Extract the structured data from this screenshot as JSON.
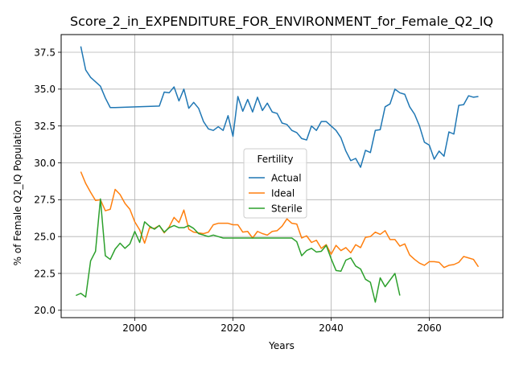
{
  "chart_data": {
    "type": "line",
    "title": "Score_2_in_EXPENDITURE_FOR_ENVIRONMENT_for_Female_Q2_IQ",
    "xlabel": "Years",
    "ylabel": "% of Female Q2_IQ Population",
    "xlim": [
      1985,
      2075
    ],
    "ylim": [
      19.5,
      38.7
    ],
    "xticks": [
      2000,
      2020,
      2040,
      2060
    ],
    "yticks": [
      20.0,
      22.5,
      25.0,
      27.5,
      30.0,
      32.5,
      35.0,
      37.5
    ],
    "xtick_labels": [
      "2000",
      "2020",
      "2040",
      "2060"
    ],
    "ytick_labels": [
      "20.0",
      "22.5",
      "25.0",
      "27.5",
      "30.0",
      "32.5",
      "35.0",
      "37.5"
    ],
    "grid": true,
    "legend": {
      "title": "Fertility",
      "position": "center-right"
    },
    "series": [
      {
        "name": "Actual",
        "color": "#1f77b4",
        "points": [
          [
            1989,
            37.9
          ],
          [
            1990,
            36.3
          ],
          [
            1991,
            35.8
          ],
          [
            1992,
            35.5
          ],
          [
            1993,
            35.2
          ],
          [
            1994,
            34.4
          ],
          [
            1995,
            33.75
          ],
          [
            1996,
            33.75
          ],
          [
            2005,
            33.85
          ],
          [
            2006,
            34.8
          ],
          [
            2007,
            34.75
          ],
          [
            2008,
            35.15
          ],
          [
            2009,
            34.2
          ],
          [
            2010,
            35.0
          ],
          [
            2011,
            33.7
          ],
          [
            2012,
            34.1
          ],
          [
            2013,
            33.7
          ],
          [
            2014,
            32.8
          ],
          [
            2015,
            32.3
          ],
          [
            2016,
            32.2
          ],
          [
            2017,
            32.45
          ],
          [
            2018,
            32.2
          ],
          [
            2019,
            33.2
          ],
          [
            2020,
            31.8
          ],
          [
            2021,
            34.5
          ],
          [
            2022,
            33.5
          ],
          [
            2023,
            34.3
          ],
          [
            2024,
            33.45
          ],
          [
            2025,
            34.45
          ],
          [
            2026,
            33.55
          ],
          [
            2027,
            34.05
          ],
          [
            2028,
            33.45
          ],
          [
            2029,
            33.35
          ],
          [
            2030,
            32.7
          ],
          [
            2031,
            32.6
          ],
          [
            2032,
            32.2
          ],
          [
            2033,
            32.05
          ],
          [
            2034,
            31.65
          ],
          [
            2035,
            31.55
          ],
          [
            2036,
            32.5
          ],
          [
            2037,
            32.2
          ],
          [
            2038,
            32.8
          ],
          [
            2039,
            32.8
          ],
          [
            2040,
            32.5
          ],
          [
            2041,
            32.2
          ],
          [
            2042,
            31.7
          ],
          [
            2043,
            30.8
          ],
          [
            2044,
            30.15
          ],
          [
            2045,
            30.3
          ],
          [
            2046,
            29.7
          ],
          [
            2047,
            30.85
          ],
          [
            2048,
            30.7
          ],
          [
            2049,
            32.2
          ],
          [
            2050,
            32.25
          ],
          [
            2051,
            33.8
          ],
          [
            2052,
            34.0
          ],
          [
            2053,
            35.0
          ],
          [
            2054,
            34.75
          ],
          [
            2055,
            34.65
          ],
          [
            2056,
            33.8
          ],
          [
            2057,
            33.3
          ],
          [
            2058,
            32.5
          ],
          [
            2059,
            31.4
          ],
          [
            2060,
            31.2
          ],
          [
            2061,
            30.25
          ],
          [
            2062,
            30.8
          ],
          [
            2063,
            30.45
          ],
          [
            2064,
            32.1
          ],
          [
            2065,
            31.95
          ],
          [
            2066,
            33.9
          ],
          [
            2067,
            33.95
          ],
          [
            2068,
            34.55
          ],
          [
            2069,
            34.45
          ],
          [
            2070,
            34.5
          ]
        ]
      },
      {
        "name": "Ideal",
        "color": "#ff7f0e",
        "points": [
          [
            1989,
            29.4
          ],
          [
            1990,
            28.6
          ],
          [
            1991,
            28.0
          ],
          [
            1992,
            27.45
          ],
          [
            1993,
            27.5
          ],
          [
            1994,
            26.75
          ],
          [
            1995,
            26.85
          ],
          [
            1996,
            28.2
          ],
          [
            1997,
            27.85
          ],
          [
            1998,
            27.25
          ],
          [
            1999,
            26.85
          ],
          [
            2000,
            26.0
          ],
          [
            2001,
            25.45
          ],
          [
            2002,
            24.55
          ],
          [
            2003,
            25.6
          ],
          [
            2004,
            25.55
          ],
          [
            2005,
            25.75
          ],
          [
            2006,
            25.25
          ],
          [
            2007,
            25.65
          ],
          [
            2008,
            26.3
          ],
          [
            2009,
            25.95
          ],
          [
            2010,
            26.8
          ],
          [
            2011,
            25.5
          ],
          [
            2012,
            25.3
          ],
          [
            2013,
            25.25
          ],
          [
            2014,
            25.2
          ],
          [
            2015,
            25.3
          ],
          [
            2016,
            25.8
          ],
          [
            2017,
            25.9
          ],
          [
            2018,
            25.9
          ],
          [
            2019,
            25.9
          ],
          [
            2020,
            25.8
          ],
          [
            2021,
            25.8
          ],
          [
            2022,
            25.3
          ],
          [
            2023,
            25.35
          ],
          [
            2024,
            24.9
          ],
          [
            2025,
            25.35
          ],
          [
            2026,
            25.2
          ],
          [
            2027,
            25.1
          ],
          [
            2028,
            25.35
          ],
          [
            2029,
            25.4
          ],
          [
            2030,
            25.7
          ],
          [
            2031,
            26.2
          ],
          [
            2032,
            25.9
          ],
          [
            2033,
            25.85
          ],
          [
            2034,
            24.9
          ],
          [
            2035,
            25.05
          ],
          [
            2036,
            24.6
          ],
          [
            2037,
            24.75
          ],
          [
            2038,
            24.2
          ],
          [
            2039,
            24.45
          ],
          [
            2040,
            23.8
          ],
          [
            2041,
            24.4
          ],
          [
            2042,
            24.05
          ],
          [
            2043,
            24.25
          ],
          [
            2044,
            23.9
          ],
          [
            2045,
            24.45
          ],
          [
            2046,
            24.25
          ],
          [
            2047,
            24.95
          ],
          [
            2048,
            25.0
          ],
          [
            2049,
            25.3
          ],
          [
            2050,
            25.15
          ],
          [
            2051,
            25.4
          ],
          [
            2052,
            24.8
          ],
          [
            2053,
            24.8
          ],
          [
            2054,
            24.35
          ],
          [
            2055,
            24.5
          ],
          [
            2056,
            23.75
          ],
          [
            2057,
            23.45
          ],
          [
            2058,
            23.2
          ],
          [
            2059,
            23.05
          ],
          [
            2060,
            23.3
          ],
          [
            2061,
            23.3
          ],
          [
            2062,
            23.25
          ],
          [
            2063,
            22.9
          ],
          [
            2064,
            23.05
          ],
          [
            2065,
            23.1
          ],
          [
            2066,
            23.25
          ],
          [
            2067,
            23.65
          ],
          [
            2068,
            23.55
          ],
          [
            2069,
            23.45
          ],
          [
            2070,
            22.95
          ]
        ]
      },
      {
        "name": "Sterile",
        "color": "#2ca02c",
        "points": [
          [
            1988,
            21.0
          ],
          [
            1989,
            21.15
          ],
          [
            1990,
            20.9
          ],
          [
            1991,
            23.35
          ],
          [
            1992,
            24.0
          ],
          [
            1993,
            27.55
          ],
          [
            1994,
            23.7
          ],
          [
            1995,
            23.45
          ],
          [
            1996,
            24.15
          ],
          [
            1997,
            24.55
          ],
          [
            1998,
            24.2
          ],
          [
            1999,
            24.5
          ],
          [
            2000,
            25.35
          ],
          [
            2001,
            24.6
          ],
          [
            2002,
            26.0
          ],
          [
            2003,
            25.7
          ],
          [
            2004,
            25.5
          ],
          [
            2005,
            25.75
          ],
          [
            2006,
            25.3
          ],
          [
            2007,
            25.6
          ],
          [
            2008,
            25.75
          ],
          [
            2009,
            25.6
          ],
          [
            2010,
            25.6
          ],
          [
            2011,
            25.75
          ],
          [
            2012,
            25.55
          ],
          [
            2013,
            25.2
          ],
          [
            2014,
            25.1
          ],
          [
            2015,
            25.0
          ],
          [
            2016,
            25.1
          ],
          [
            2017,
            25.0
          ],
          [
            2018,
            24.9
          ],
          [
            2019,
            24.9
          ],
          [
            2020,
            24.9
          ],
          [
            2021,
            24.9
          ],
          [
            2022,
            24.9
          ],
          [
            2023,
            24.9
          ],
          [
            2024,
            24.9
          ],
          [
            2025,
            24.9
          ],
          [
            2026,
            24.9
          ],
          [
            2027,
            24.9
          ],
          [
            2028,
            24.9
          ],
          [
            2029,
            24.9
          ],
          [
            2030,
            24.9
          ],
          [
            2031,
            24.9
          ],
          [
            2032,
            24.9
          ],
          [
            2033,
            24.65
          ],
          [
            2034,
            23.7
          ],
          [
            2035,
            24.05
          ],
          [
            2036,
            24.2
          ],
          [
            2037,
            23.95
          ],
          [
            2038,
            24.0
          ],
          [
            2039,
            24.4
          ],
          [
            2040,
            23.5
          ],
          [
            2041,
            22.7
          ],
          [
            2042,
            22.65
          ],
          [
            2043,
            23.4
          ],
          [
            2044,
            23.55
          ],
          [
            2045,
            23.0
          ],
          [
            2046,
            22.8
          ],
          [
            2047,
            22.1
          ],
          [
            2048,
            21.9
          ],
          [
            2049,
            20.55
          ],
          [
            2050,
            22.2
          ],
          [
            2051,
            21.6
          ],
          [
            2052,
            22.05
          ],
          [
            2053,
            22.5
          ],
          [
            2054,
            21.0
          ]
        ]
      }
    ]
  }
}
